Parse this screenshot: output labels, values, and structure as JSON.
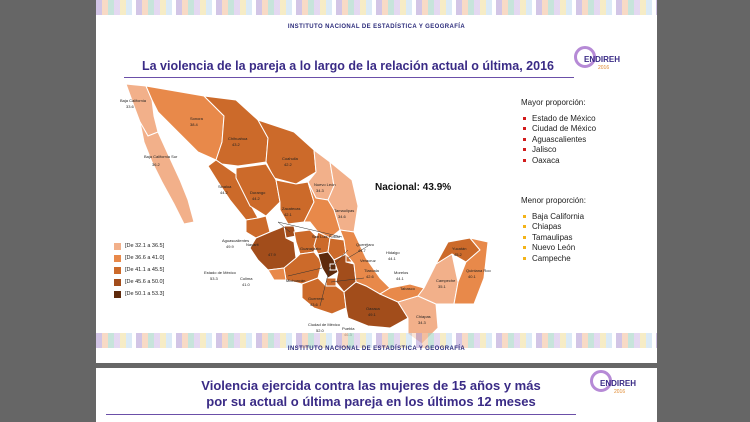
{
  "band_title": "INSTITUTO NACIONAL DE ESTADÍSTICA Y GEOGRAFÍA",
  "slide1": {
    "title": "La violencia de la pareja a lo largo de la relación actual o última, 2016",
    "logo": {
      "text": "ENDIREH",
      "year": "2016"
    },
    "nacional": "Nacional: 43.9%",
    "mayor_heading": "Mayor proporción:",
    "mayor_items": [
      "Estado de México",
      "Ciudad de México",
      "Aguascalientes",
      "Jalisco",
      "Oaxaca"
    ],
    "menor_heading": "Menor proporción:",
    "menor_items": [
      "Baja California",
      "Chiapas",
      "Tamaulipas",
      "Nuevo León",
      "Campeche"
    ],
    "bullet_colors": {
      "mayor": "#d21c1c",
      "menor": "#f3b319"
    },
    "legend": [
      {
        "label": "[De 32.1 a 36.5]",
        "color": "#f2b08a"
      },
      {
        "label": "[De 36.6 a 41.0]",
        "color": "#e8894a"
      },
      {
        "label": "[De 41.1 a 45.5]",
        "color": "#cc6a2a"
      },
      {
        "label": "[De 45.6 a 50.0]",
        "color": "#a24d1b"
      },
      {
        "label": "[De 50.1 a 53.3]",
        "color": "#5e2a0c"
      }
    ],
    "map_labels": {
      "baja_california": "Baja California",
      "baja_california_val": "33.6",
      "baja_california_sur": "Baja California Sur",
      "baja_california_sur_val": "36.2",
      "sonora": "Sonora",
      "sonora_val": "38.4",
      "chihuahua": "Chihuahua",
      "chihuahua_val": "43.2",
      "coahuila": "Coahuila",
      "coahuila_val": "42.2",
      "sinaloa": "Sinaloa",
      "sinaloa_val": "44.2",
      "durango": "Durango",
      "durango_val": "44.2",
      "nuevo_leon": "Nuevo León",
      "nuevo_leon_val": "34.3",
      "tamaulipas": "Tamaulipas",
      "tamaulipas_val": "34.6",
      "zacatecas": "Zacatecas",
      "zacatecas_val": "42.1",
      "san_luis": "San Luis Potosí",
      "aguascalientes": "Aguascalientes",
      "aguascalientes_val": "49.9",
      "nayarit": "Nayarit",
      "jalisco_val": "47.9",
      "guanajuato": "Guanajuato",
      "queretaro": "Querétaro",
      "queretaro_val": "44.7",
      "hidalgo": "Hidalgo",
      "hidalgo_val": "44.1",
      "tlaxcala": "Tlaxcala",
      "tlaxcala_val": "42.6",
      "morelos": "Morelos",
      "morelos_val": "44.1",
      "veracruz": "Veracruz",
      "edomex": "Estado de México",
      "edomex_val": "53.3",
      "michoacan": "Michoacán",
      "colima": "Colima",
      "colima_val": "41.0",
      "guerrero": "Guerrero",
      "guerrero_val": "43.6",
      "cdmx": "Ciudad de México",
      "cdmx_val": "52.0",
      "oaxaca": "Oaxaca",
      "oaxaca_val": "49.1",
      "puebla": "Puebla",
      "puebla_val": "46.3",
      "tabasco": "Tabasco",
      "chiapas": "Chiapas",
      "chiapas_val": "34.3",
      "campeche": "Campeche",
      "campeche_val": "35.1",
      "yucatan": "Yucatán",
      "yucatan_val": "45.2",
      "quintana_roo": "Quintana Roo",
      "quintana_roo_val": "40.1"
    }
  },
  "slide2": {
    "title_line1": "Violencia ejercida contra las mujeres de 15 años y más",
    "title_line2": "por su actual o última pareja en los últimos 12 meses",
    "logo": {
      "text": "ENDIREH",
      "year": "2016"
    }
  }
}
